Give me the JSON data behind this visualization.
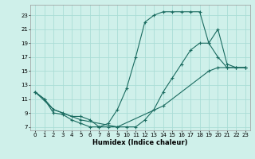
{
  "xlabel": "Humidex (Indice chaleur)",
  "bg_color": "#cff0ea",
  "grid_color": "#aaddd6",
  "line_color": "#1a6b60",
  "xlim": [
    -0.5,
    23.5
  ],
  "ylim": [
    6.5,
    24.5
  ],
  "xticks": [
    0,
    1,
    2,
    3,
    4,
    5,
    6,
    7,
    8,
    9,
    10,
    11,
    12,
    13,
    14,
    15,
    16,
    17,
    18,
    19,
    20,
    21,
    22,
    23
  ],
  "yticks": [
    7,
    9,
    11,
    13,
    15,
    17,
    19,
    21,
    23
  ],
  "line1_x": [
    0,
    1,
    2,
    3,
    4,
    5,
    6,
    7,
    8,
    9,
    10,
    11,
    12,
    13,
    14,
    15,
    16,
    17,
    18,
    19,
    20,
    21,
    22,
    23
  ],
  "line1_y": [
    12,
    11,
    9,
    8.8,
    8,
    7.5,
    7,
    7,
    7.5,
    9.5,
    12.5,
    17,
    22,
    23,
    23.5,
    23.5,
    23.5,
    23.5,
    23.5,
    19,
    17,
    15.5,
    15.5,
    15.5
  ],
  "line2_x": [
    0,
    1,
    2,
    3,
    4,
    5,
    6,
    7,
    8,
    9,
    10,
    11,
    12,
    13,
    14,
    15,
    16,
    17,
    18,
    19,
    20,
    21,
    22,
    23
  ],
  "line2_y": [
    12,
    11,
    9.5,
    9,
    8.5,
    8.5,
    8,
    7,
    7,
    7,
    7,
    7,
    8,
    9.5,
    12,
    14,
    16,
    18,
    19,
    19,
    21,
    16,
    15.5,
    15.5
  ],
  "line3_x": [
    0,
    2,
    5,
    9,
    14,
    19,
    20,
    21,
    22,
    23
  ],
  "line3_y": [
    12,
    9.5,
    8,
    7,
    10,
    15,
    15.5,
    15.5,
    15.5,
    15.5
  ]
}
